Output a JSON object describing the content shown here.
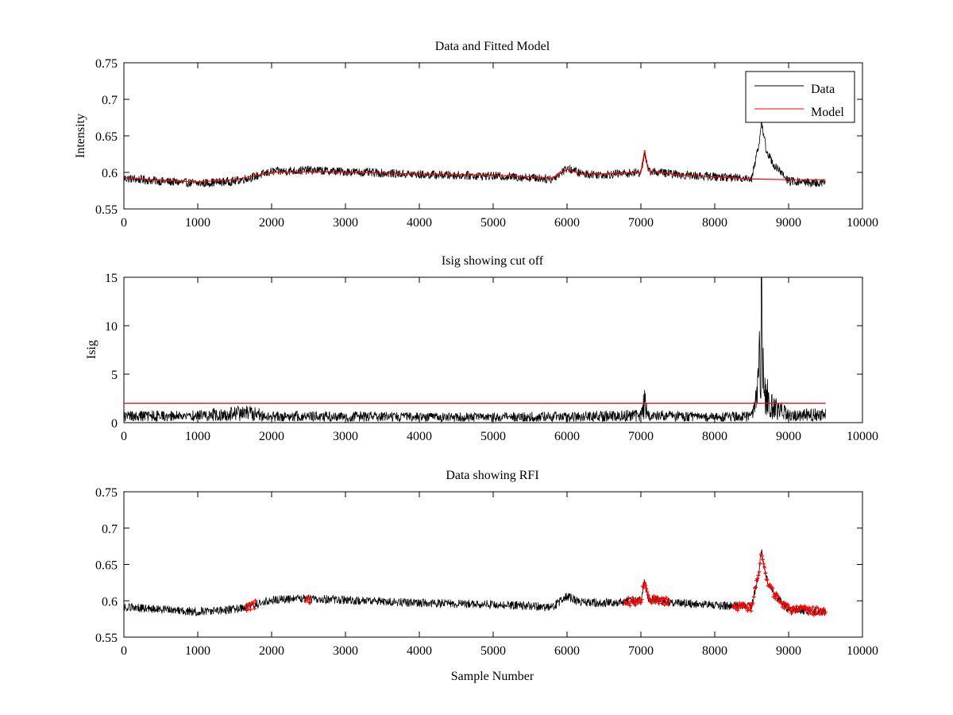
{
  "chart_data": [
    {
      "type": "line",
      "title": "Data and Fitted Model",
      "xlabel": "",
      "ylabel": "Intensity",
      "xlim": [
        0,
        10000
      ],
      "ylim": [
        0.55,
        0.75
      ],
      "xticks": [
        0,
        1000,
        2000,
        3000,
        4000,
        5000,
        6000,
        7000,
        8000,
        9000,
        10000
      ],
      "yticks": [
        0.55,
        0.6,
        0.65,
        0.7,
        0.75
      ],
      "ytick_labels": [
        "0.55",
        "0.6",
        "0.65",
        "0.7",
        "0.75"
      ],
      "legend": {
        "position": "top-right",
        "entries": [
          "Data",
          "Model"
        ]
      },
      "series": [
        {
          "name": "Data",
          "color": "#000000",
          "x": [
            0,
            500,
            1000,
            1500,
            1800,
            2000,
            2500,
            3000,
            3500,
            4000,
            4500,
            5000,
            5500,
            5800,
            6000,
            6200,
            6500,
            7000,
            7050,
            7100,
            7500,
            8000,
            8500,
            8600,
            8630,
            8700,
            8800,
            9000,
            9500
          ],
          "y": [
            0.592,
            0.588,
            0.585,
            0.588,
            0.595,
            0.601,
            0.603,
            0.601,
            0.599,
            0.597,
            0.596,
            0.595,
            0.593,
            0.591,
            0.606,
            0.598,
            0.597,
            0.6,
            0.628,
            0.602,
            0.597,
            0.594,
            0.592,
            0.64,
            0.668,
            0.63,
            0.61,
            0.588,
            0.585
          ],
          "noise_amplitude": 0.006
        },
        {
          "name": "Model",
          "color": "#ff0000",
          "x": [
            0,
            500,
            1000,
            1500,
            1800,
            2000,
            2500,
            3000,
            3500,
            4000,
            4500,
            5000,
            5500,
            5800,
            6000,
            6200,
            6500,
            6900,
            7000,
            7050,
            7100,
            7500,
            8000,
            8500,
            9000,
            9500
          ],
          "y": [
            0.593,
            0.589,
            0.587,
            0.59,
            0.596,
            0.6,
            0.601,
            0.6,
            0.599,
            0.598,
            0.597,
            0.596,
            0.594,
            0.592,
            0.604,
            0.598,
            0.598,
            0.6,
            0.6,
            0.63,
            0.602,
            0.597,
            0.594,
            0.591,
            0.59,
            0.59
          ]
        }
      ]
    },
    {
      "type": "line",
      "title": "Isig showing cut off",
      "xlabel": "",
      "ylabel": "Isig",
      "xlim": [
        0,
        10000
      ],
      "ylim": [
        0,
        15
      ],
      "xticks": [
        0,
        1000,
        2000,
        3000,
        4000,
        5000,
        6000,
        7000,
        8000,
        9000,
        10000
      ],
      "yticks": [
        0,
        5,
        10,
        15
      ],
      "ytick_labels": [
        "0",
        "5",
        "10",
        "15"
      ],
      "cutoff": 2,
      "series": [
        {
          "color": "#000000",
          "x": [
            0,
            1000,
            1700,
            2000,
            3000,
            4000,
            5000,
            6000,
            7000,
            7050,
            7100,
            8000,
            8500,
            8560,
            8600,
            8630,
            8660,
            8700,
            8750,
            8800,
            9000,
            9500
          ],
          "y": [
            0.8,
            0.9,
            1.2,
            0.8,
            0.8,
            0.7,
            0.7,
            0.8,
            0.9,
            2.5,
            0.9,
            0.7,
            0.8,
            3.0,
            6.0,
            13.5,
            5.0,
            3.5,
            2.5,
            2.0,
            1.0,
            1.0
          ],
          "noise_amplitude": 1.2
        },
        {
          "color": "#ff0000",
          "x": [
            0,
            9500
          ],
          "y": [
            2,
            2
          ]
        }
      ]
    },
    {
      "type": "scatter",
      "title": "Data showing RFI",
      "xlabel": "Sample Number",
      "ylabel": "",
      "xlim": [
        0,
        10000
      ],
      "ylim": [
        0.55,
        0.75
      ],
      "xticks": [
        0,
        1000,
        2000,
        3000,
        4000,
        5000,
        6000,
        7000,
        8000,
        9000,
        10000
      ],
      "yticks": [
        0.55,
        0.6,
        0.65,
        0.7,
        0.75
      ],
      "ytick_labels": [
        "0.55",
        "0.6",
        "0.65",
        "0.7",
        "0.75"
      ],
      "series": [
        {
          "color": "#000000",
          "x": [
            0,
            500,
            1000,
            1500,
            1800,
            2000,
            2500,
            3000,
            3500,
            4000,
            4500,
            5000,
            5500,
            5800,
            6000,
            6200,
            6500,
            7000,
            7050,
            7100,
            7500,
            8000,
            8500,
            8600,
            8630,
            8700,
            8800,
            9000,
            9500
          ],
          "y": [
            0.592,
            0.588,
            0.585,
            0.588,
            0.595,
            0.601,
            0.603,
            0.601,
            0.599,
            0.597,
            0.596,
            0.595,
            0.593,
            0.591,
            0.606,
            0.598,
            0.597,
            0.6,
            0.628,
            0.602,
            0.597,
            0.594,
            0.592,
            0.64,
            0.668,
            0.63,
            0.61,
            0.588,
            0.585
          ],
          "noise_amplitude": 0.006
        },
        {
          "color": "#ff0000",
          "marker": "+",
          "flagged_ranges": [
            [
              1650,
              1780
            ],
            [
              2460,
              2520
            ],
            [
              6780,
              7380
            ],
            [
              8250,
              9500
            ]
          ]
        }
      ]
    }
  ]
}
